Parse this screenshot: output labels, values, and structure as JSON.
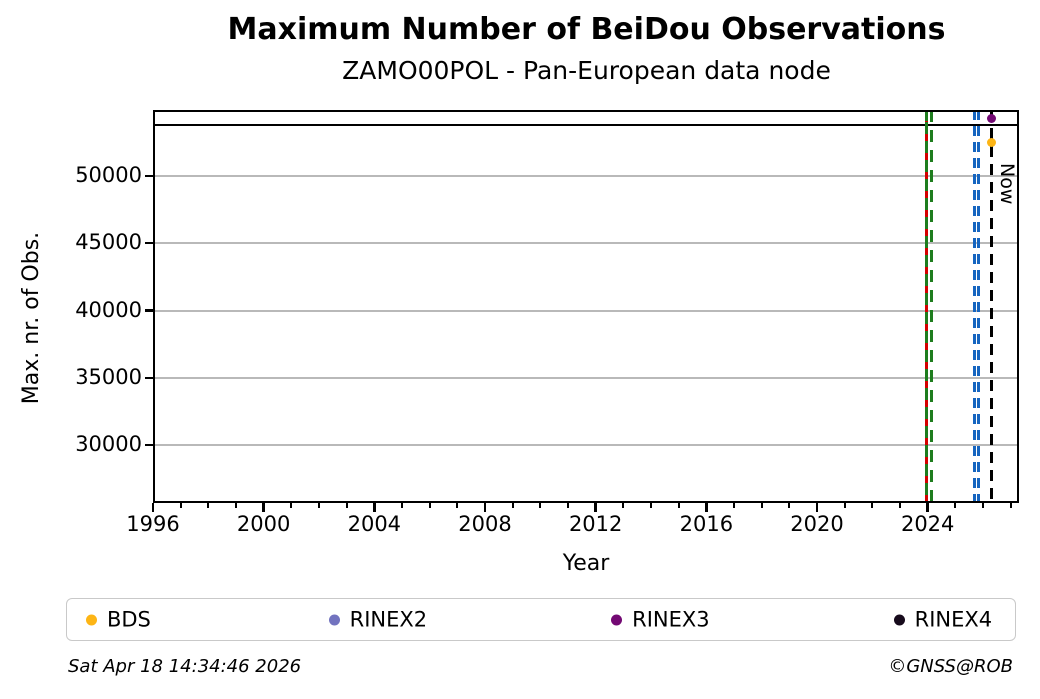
{
  "chart_data": {
    "type": "scatter",
    "title": "Maximum Number of BeiDou Observations",
    "subtitle": "ZAMO00POL - Pan-European data node",
    "xlabel": "Year",
    "ylabel": "Max. nr. of Obs.",
    "xlim": [
      1996,
      2027.3
    ],
    "ylim": [
      25700,
      54900
    ],
    "xticks": [
      1996,
      2000,
      2004,
      2008,
      2012,
      2016,
      2020,
      2024
    ],
    "minor_xtick_step": 1,
    "yticks": [
      30000,
      35000,
      40000,
      45000,
      50000
    ],
    "grid": {
      "horizontal": true,
      "color": "#b9b9b9"
    },
    "reference_line": {
      "y": 53800,
      "color": "#000000",
      "style": "solid"
    },
    "series": [
      {
        "name": "BDS",
        "color": "#fdb515",
        "points": [
          {
            "x": 2026.29,
            "y": 52500
          }
        ]
      },
      {
        "name": "RINEX2",
        "color": "#7273bf",
        "points": []
      },
      {
        "name": "RINEX3",
        "color": "#730973",
        "points": [
          {
            "x": 2026.29,
            "y": 54300
          }
        ]
      },
      {
        "name": "RINEX4",
        "color": "#170b1c",
        "points": []
      }
    ],
    "event_lines": [
      {
        "x": 2023.95,
        "color": "#d40000",
        "dash": [
          12,
          7
        ],
        "phase": 0,
        "name": "event-line-red"
      },
      {
        "x": 2023.95,
        "color": "#1e7d1e",
        "dash": [
          12,
          7
        ],
        "phase": 12,
        "name": "event-line-green-1"
      },
      {
        "x": 2024.12,
        "color": "#1e7d1e",
        "dash": [
          12,
          8
        ],
        "phase": 0,
        "name": "event-line-green-2"
      },
      {
        "x": 2025.7,
        "color": "#1565c0",
        "dash": [
          10,
          6
        ],
        "phase": 0,
        "name": "event-line-blue-1"
      },
      {
        "x": 2025.85,
        "color": "#1565c0",
        "dash": [
          10,
          6
        ],
        "phase": 0,
        "name": "event-line-blue-2"
      },
      {
        "x": 2026.29,
        "color": "#000000",
        "dash": [
          11,
          7
        ],
        "phase": 0,
        "name": "now-line",
        "label": "Now"
      }
    ],
    "legend_position": "bottom"
  },
  "footer": {
    "timestamp": "Sat Apr 18 14:34:46 2026",
    "credit": "©GNSS@ROB"
  }
}
